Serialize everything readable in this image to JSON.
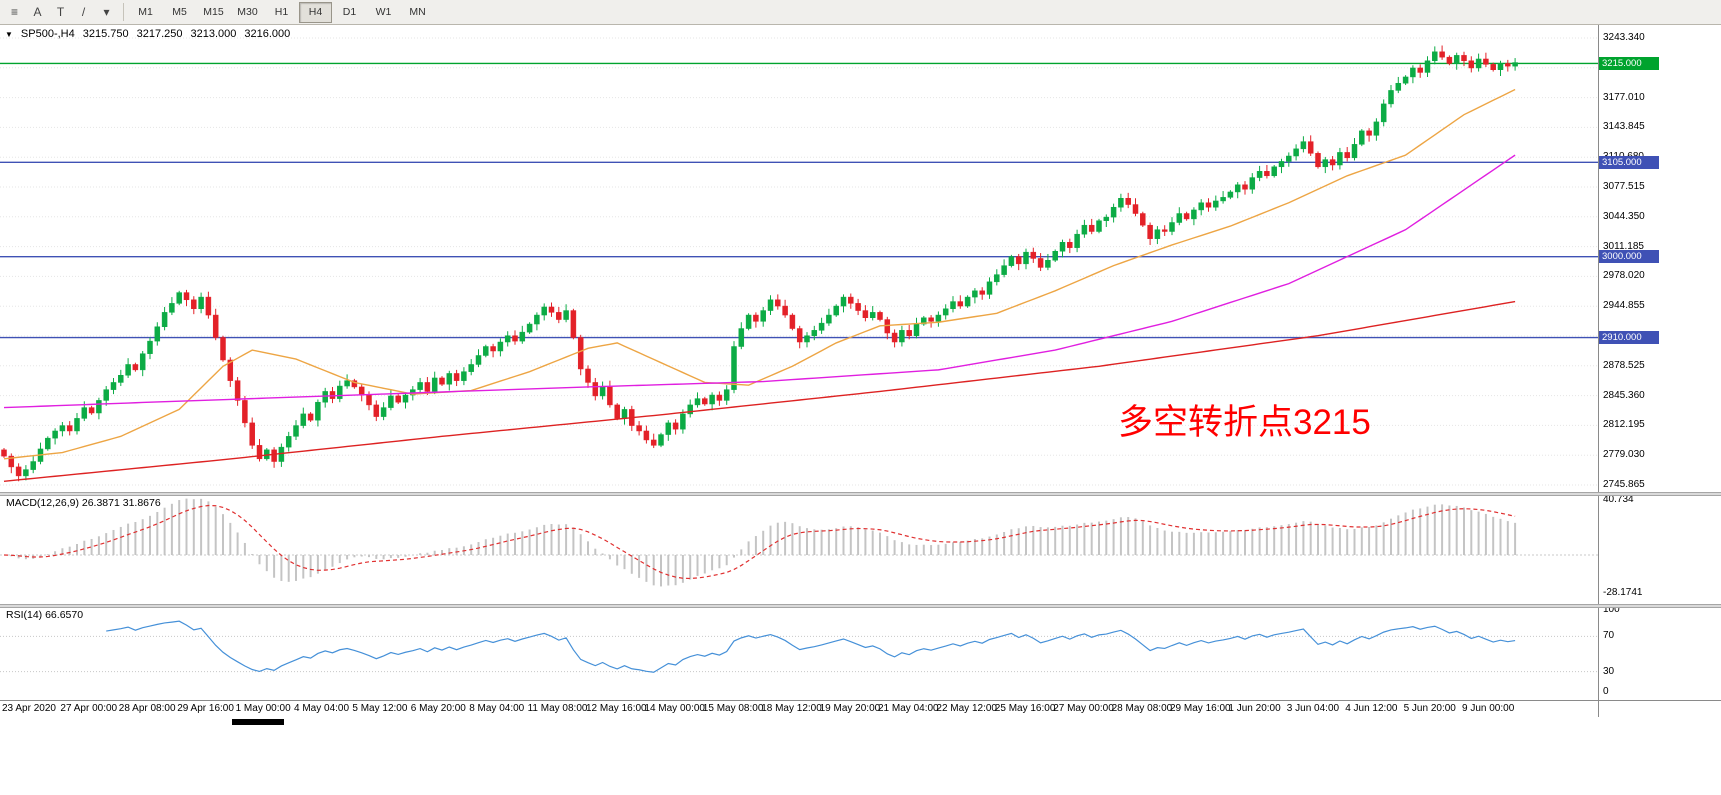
{
  "toolbar": {
    "tool_icons": [
      {
        "name": "chart-properties-icon",
        "glyph": "≡"
      },
      {
        "name": "text-annotation-icon",
        "glyph": "A"
      },
      {
        "name": "label-tool-icon",
        "glyph": "T"
      },
      {
        "name": "trendline-tool-icon",
        "glyph": "/"
      },
      {
        "name": "tools-dropdown-icon",
        "glyph": "▾"
      }
    ],
    "timeframes": [
      "M1",
      "M5",
      "M15",
      "M30",
      "H1",
      "H4",
      "D1",
      "W1",
      "MN"
    ],
    "active_timeframe": "H4"
  },
  "header": {
    "dropdown_glyph": "▼",
    "symbol": "SP500-,H4",
    "open": "3215.750",
    "high": "3217.250",
    "low": "3213.000",
    "close": "3216.000"
  },
  "chart": {
    "annotation": {
      "text": "多空转折点3215",
      "color": "#ff0000"
    },
    "price_axis_ticks": [
      "3243.340",
      "3210.175",
      "3177.010",
      "3143.845",
      "3110.680",
      "3077.515",
      "3044.350",
      "3011.185",
      "2978.020",
      "2944.855",
      "2911.690",
      "2878.525",
      "2845.360",
      "2812.195",
      "2779.030",
      "2745.865"
    ],
    "hlines": [
      {
        "label": "3215.000",
        "price": 3215,
        "color": "#00a32e"
      },
      {
        "label": "3105.000",
        "price": 3105,
        "color": "#3f51b5"
      },
      {
        "label": "3000.000",
        "price": 3000,
        "color": "#3f51b5"
      },
      {
        "label": "2910.000",
        "price": 2910,
        "color": "#3f51b5"
      }
    ],
    "candles": {
      "up_color": "#0cab45",
      "down_color": "#e32128",
      "first_open": 2785,
      "closes": [
        2778,
        2766,
        2756,
        2763,
        2772,
        2786,
        2798,
        2806,
        2812,
        2806,
        2820,
        2832,
        2826,
        2840,
        2852,
        2860,
        2868,
        2880,
        2874,
        2892,
        2906,
        2922,
        2938,
        2948,
        2960,
        2952,
        2942,
        2955,
        2935,
        2910,
        2885,
        2862,
        2840,
        2815,
        2790,
        2775,
        2785,
        2772,
        2788,
        2800,
        2812,
        2825,
        2818,
        2838,
        2850,
        2842,
        2856,
        2862,
        2855,
        2846,
        2835,
        2822,
        2832,
        2845,
        2838,
        2846,
        2852,
        2860,
        2850,
        2865,
        2858,
        2870,
        2862,
        2872,
        2880,
        2890,
        2900,
        2895,
        2905,
        2912,
        2906,
        2916,
        2925,
        2935,
        2944,
        2938,
        2930,
        2940,
        2910,
        2875,
        2860,
        2845,
        2855,
        2835,
        2820,
        2830,
        2812,
        2806,
        2796,
        2790,
        2802,
        2815,
        2808,
        2825,
        2835,
        2842,
        2836,
        2846,
        2840,
        2852,
        2900,
        2920,
        2935,
        2928,
        2940,
        2952,
        2945,
        2935,
        2920,
        2905,
        2912,
        2918,
        2926,
        2935,
        2945,
        2955,
        2948,
        2940,
        2932,
        2938,
        2930,
        2915,
        2905,
        2918,
        2912,
        2925,
        2932,
        2928,
        2935,
        2942,
        2950,
        2945,
        2955,
        2962,
        2958,
        2972,
        2980,
        2990,
        3000,
        2992,
        3005,
        2998,
        2988,
        2996,
        3006,
        3016,
        3010,
        3025,
        3035,
        3028,
        3040,
        3044,
        3055,
        3065,
        3058,
        3048,
        3035,
        3020,
        3030,
        3028,
        3038,
        3048,
        3042,
        3052,
        3060,
        3055,
        3062,
        3066,
        3072,
        3080,
        3075,
        3088,
        3095,
        3090,
        3100,
        3106,
        3112,
        3120,
        3128,
        3115,
        3100,
        3108,
        3102,
        3116,
        3110,
        3125,
        3140,
        3135,
        3150,
        3170,
        3185,
        3193,
        3200,
        3210,
        3205,
        3218,
        3228,
        3222,
        3215,
        3224,
        3218,
        3210,
        3220,
        3214,
        3208,
        3215,
        3212,
        3216
      ]
    },
    "moving_averages": [
      {
        "name": "ma-fast",
        "color": "#eda544",
        "anchors": [
          [
            0,
            2775
          ],
          [
            8,
            2782
          ],
          [
            16,
            2800
          ],
          [
            24,
            2830
          ],
          [
            30,
            2878
          ],
          [
            34,
            2896
          ],
          [
            40,
            2886
          ],
          [
            48,
            2860
          ],
          [
            56,
            2847
          ],
          [
            64,
            2851
          ],
          [
            72,
            2872
          ],
          [
            80,
            2898
          ],
          [
            84,
            2904
          ],
          [
            90,
            2882
          ],
          [
            96,
            2860
          ],
          [
            102,
            2857
          ],
          [
            108,
            2878
          ],
          [
            114,
            2904
          ],
          [
            120,
            2923
          ],
          [
            128,
            2927
          ],
          [
            136,
            2937
          ],
          [
            144,
            2962
          ],
          [
            152,
            2990
          ],
          [
            160,
            3013
          ],
          [
            168,
            3034
          ],
          [
            176,
            3060
          ],
          [
            184,
            3090
          ],
          [
            192,
            3113
          ],
          [
            200,
            3158
          ],
          [
            207,
            3186
          ]
        ]
      },
      {
        "name": "ma-mid",
        "color": "#e01fe0",
        "anchors": [
          [
            0,
            2832
          ],
          [
            20,
            2838
          ],
          [
            48,
            2846
          ],
          [
            80,
            2855
          ],
          [
            104,
            2861
          ],
          [
            128,
            2874
          ],
          [
            144,
            2896
          ],
          [
            160,
            2928
          ],
          [
            176,
            2970
          ],
          [
            192,
            3030
          ],
          [
            207,
            3113
          ]
        ]
      },
      {
        "name": "ma-slow",
        "color": "#dd2222",
        "anchors": [
          [
            0,
            2750
          ],
          [
            30,
            2774
          ],
          [
            60,
            2800
          ],
          [
            90,
            2824
          ],
          [
            120,
            2850
          ],
          [
            150,
            2878
          ],
          [
            180,
            2912
          ],
          [
            207,
            2950
          ]
        ]
      }
    ]
  },
  "macd": {
    "label": "MACD(12,26,9) 26.3871 31.8676",
    "params": {
      "fast": 12,
      "slow": 26,
      "signal": 9
    },
    "ticks": [
      "40.734",
      "-28.1741"
    ],
    "histogram_color": "#c4c4c4",
    "signal_color": "#e03030"
  },
  "rsi": {
    "label": "RSI(14) 66.6570",
    "period": 14,
    "levels": [
      70,
      30
    ],
    "ticks": [
      "100",
      "70",
      "30",
      "0"
    ],
    "color": "#4590d8"
  },
  "time_axis": {
    "labels": [
      {
        "bar": 0,
        "text": "23 Apr 2020"
      },
      {
        "bar": 8,
        "text": "27 Apr 00:00"
      },
      {
        "bar": 16,
        "text": "28 Apr 08:00"
      },
      {
        "bar": 24,
        "text": "29 Apr 16:00"
      },
      {
        "bar": 32,
        "text": "1 May 00:00"
      },
      {
        "bar": 40,
        "text": "4 May 04:00"
      },
      {
        "bar": 48,
        "text": "5 May 12:00"
      },
      {
        "bar": 56,
        "text": "6 May 20:00"
      },
      {
        "bar": 64,
        "text": "8 May 04:00"
      },
      {
        "bar": 72,
        "text": "11 May 08:00"
      },
      {
        "bar": 80,
        "text": "12 May 16:00"
      },
      {
        "bar": 88,
        "text": "14 May 00:00"
      },
      {
        "bar": 96,
        "text": "15 May 08:00"
      },
      {
        "bar": 104,
        "text": "18 May 12:00"
      },
      {
        "bar": 112,
        "text": "19 May 20:00"
      },
      {
        "bar": 120,
        "text": "21 May 04:00"
      },
      {
        "bar": 128,
        "text": "22 May 12:00"
      },
      {
        "bar": 136,
        "text": "25 May 16:00"
      },
      {
        "bar": 144,
        "text": "27 May 00:00"
      },
      {
        "bar": 152,
        "text": "28 May 08:00"
      },
      {
        "bar": 160,
        "text": "29 May 16:00"
      },
      {
        "bar": 168,
        "text": "1 Jun 20:00"
      },
      {
        "bar": 176,
        "text": "3 Jun 04:00"
      },
      {
        "bar": 184,
        "text": "4 Jun 12:00"
      },
      {
        "bar": 192,
        "text": "5 Jun 20:00"
      },
      {
        "bar": 200,
        "text": "9 Jun 00:00"
      }
    ]
  }
}
